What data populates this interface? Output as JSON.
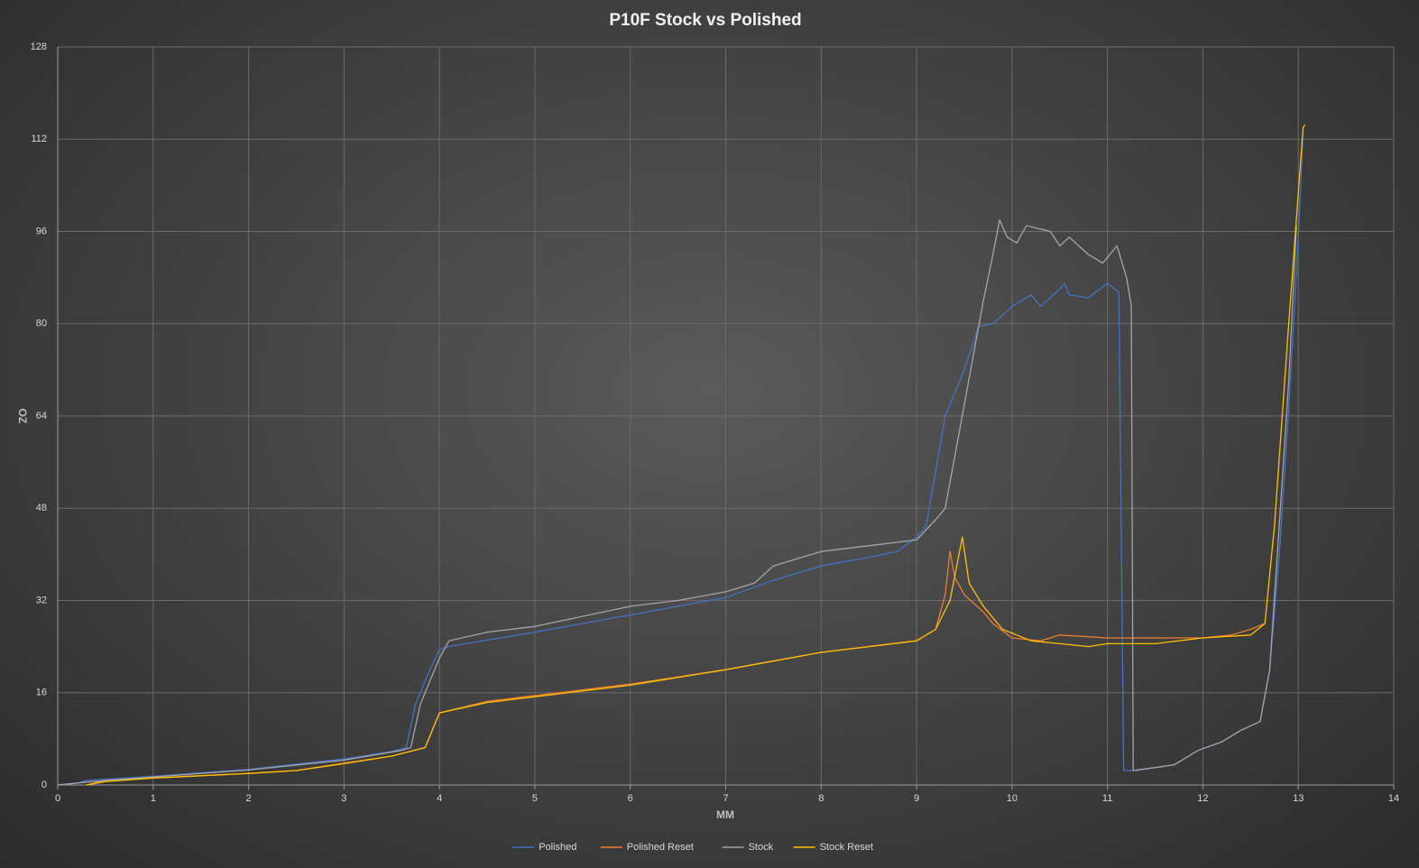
{
  "chart_data": {
    "type": "line",
    "title": "P10F Stock vs Polished",
    "x_label": "MM",
    "y_label": "OZ",
    "xlim": [
      0,
      14
    ],
    "xticks": [
      0,
      1,
      2,
      3,
      4,
      5,
      6,
      7,
      8,
      9,
      10,
      11,
      12,
      13,
      14
    ],
    "ylim": [
      0,
      128
    ],
    "yticks": [
      0,
      16,
      32,
      48,
      64,
      80,
      96,
      112,
      128
    ],
    "grid": true,
    "legend": "bottom",
    "series": [
      {
        "name": "Polished",
        "color": "#4472c4",
        "x": [
          0,
          0.2,
          0.3,
          1,
          2,
          3,
          3.5,
          3.65,
          3.75,
          3.9,
          4,
          4.1,
          5,
          6,
          7,
          7.5,
          8,
          8.5,
          8.8,
          9,
          9.1,
          9.3,
          9.5,
          9.65,
          9.8,
          10,
          10.2,
          10.3,
          10.5,
          10.55,
          10.6,
          10.8,
          11,
          11.12,
          11.17,
          11.3,
          11.7,
          11.8,
          11.95,
          12.2,
          12.4,
          12.6,
          12.7,
          12.8,
          12.9,
          13,
          13.05
        ],
        "values": [
          0,
          0.3,
          0.8,
          1.5,
          2.7,
          4.5,
          5.8,
          6.5,
          14,
          20,
          23.5,
          24,
          26.5,
          29.5,
          32.5,
          35.5,
          38,
          39.5,
          40.5,
          43,
          45,
          64,
          72,
          79.5,
          80,
          83,
          85,
          83,
          86,
          87,
          85,
          84.5,
          87,
          85.5,
          2.5,
          2.5,
          3.5,
          4.5,
          6,
          7.5,
          9.5,
          11,
          20,
          40,
          65,
          95,
          113
        ]
      },
      {
        "name": "Polished Reset",
        "color": "#ed7d31",
        "x": [
          0.3,
          0.5,
          1,
          2,
          2.5,
          3,
          3.5,
          3.85,
          4,
          4.5,
          5,
          6,
          7,
          8,
          9,
          9.2,
          9.3,
          9.35,
          9.4,
          9.5,
          9.7,
          9.8,
          10,
          10.3,
          10.5,
          11,
          11.5,
          12,
          12.3,
          12.5,
          12.65
        ],
        "values": [
          0,
          0.8,
          1.2,
          2,
          2.5,
          3.8,
          5,
          6.5,
          12.5,
          14.5,
          15.5,
          17.5,
          20,
          23,
          25,
          27,
          33,
          40.5,
          36,
          33,
          30,
          28,
          25.5,
          25,
          26,
          25.5,
          25.5,
          25.5,
          26,
          27,
          28
        ]
      },
      {
        "name": "Stock",
        "color": "#a5a5a5",
        "x": [
          0,
          0.3,
          1,
          2,
          3,
          3.6,
          3.7,
          3.8,
          4,
          4.1,
          4.5,
          5,
          6,
          6.5,
          7,
          7.3,
          7.5,
          8,
          8.5,
          9,
          9.2,
          9.3,
          9.5,
          9.7,
          9.8,
          9.87,
          9.95,
          10.05,
          10.15,
          10.4,
          10.5,
          10.6,
          10.8,
          10.95,
          11.1,
          11.2,
          11.25,
          11.27,
          11.7,
          11.8,
          11.95,
          12.2,
          12.4,
          12.6,
          12.7,
          12.8,
          12.9,
          12.98
        ],
        "values": [
          0,
          0.5,
          1.4,
          2.6,
          4.3,
          6,
          6.5,
          14,
          22,
          25,
          26.5,
          27.5,
          31,
          32,
          33.5,
          35,
          38,
          40.5,
          41.5,
          42.5,
          46,
          48,
          66,
          84,
          92,
          98,
          95,
          94,
          97,
          96,
          93.5,
          95,
          92,
          90.5,
          93.5,
          88,
          83,
          2.5,
          3.5,
          4.5,
          6,
          7.5,
          9.5,
          11,
          20,
          45,
          70,
          97
        ]
      },
      {
        "name": "Stock Reset",
        "color": "#ffc000",
        "x": [
          0.3,
          0.5,
          1,
          2,
          2.5,
          3,
          3.5,
          3.85,
          4,
          4.5,
          5,
          6,
          7,
          8,
          9,
          9.2,
          9.35,
          9.48,
          9.55,
          9.7,
          9.9,
          10.2,
          10.5,
          10.8,
          11,
          11.5,
          12,
          12.5,
          12.65,
          12.75,
          12.9,
          13.05,
          13.07
        ],
        "values": [
          0,
          0.6,
          1.2,
          2,
          2.5,
          3.7,
          5,
          6.5,
          12.5,
          14.3,
          15.3,
          17.3,
          20,
          23,
          25,
          27,
          32,
          43,
          35,
          31,
          27,
          25,
          24.5,
          24,
          24.5,
          24.5,
          25.5,
          26,
          28,
          45,
          80,
          114,
          114.5
        ]
      }
    ]
  }
}
